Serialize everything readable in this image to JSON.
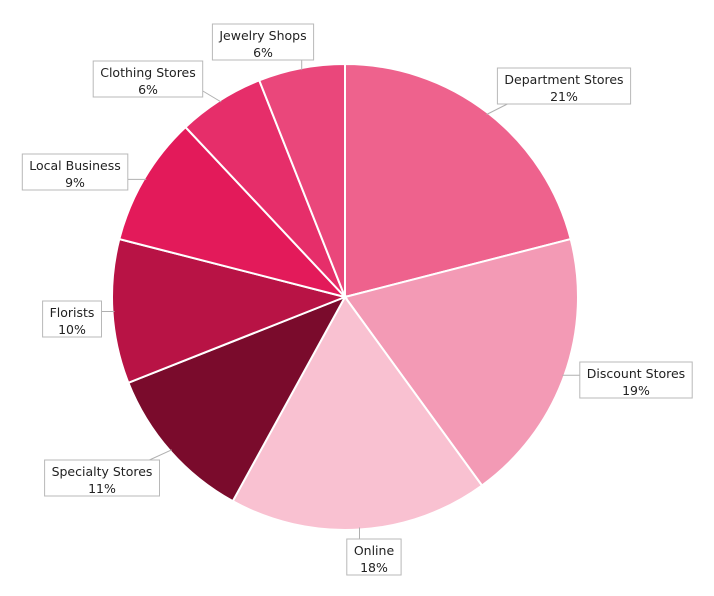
{
  "chart_data": {
    "type": "pie",
    "start_angle_deg": 0,
    "direction": "clockwise",
    "slices": [
      {
        "label": "Department Stores",
        "value": 21,
        "value_label": "21%",
        "color": "#ee628d"
      },
      {
        "label": "Discount Stores",
        "value": 19,
        "value_label": "19%",
        "color": "#f39ab5"
      },
      {
        "label": "Online",
        "value": 18,
        "value_label": "18%",
        "color": "#f9c1d1"
      },
      {
        "label": "Specialty Stores",
        "value": 11,
        "value_label": "11%",
        "color": "#7a0b2c"
      },
      {
        "label": "Florists",
        "value": 10,
        "value_label": "10%",
        "color": "#b81345"
      },
      {
        "label": "Local Business",
        "value": 9,
        "value_label": "9%",
        "color": "#e31a5a"
      },
      {
        "label": "Clothing Stores",
        "value": 6,
        "value_label": "6%",
        "color": "#e62e6a"
      },
      {
        "label": "Jewelry Shops",
        "value": 6,
        "value_label": "6%",
        "color": "#ea477b"
      }
    ]
  }
}
